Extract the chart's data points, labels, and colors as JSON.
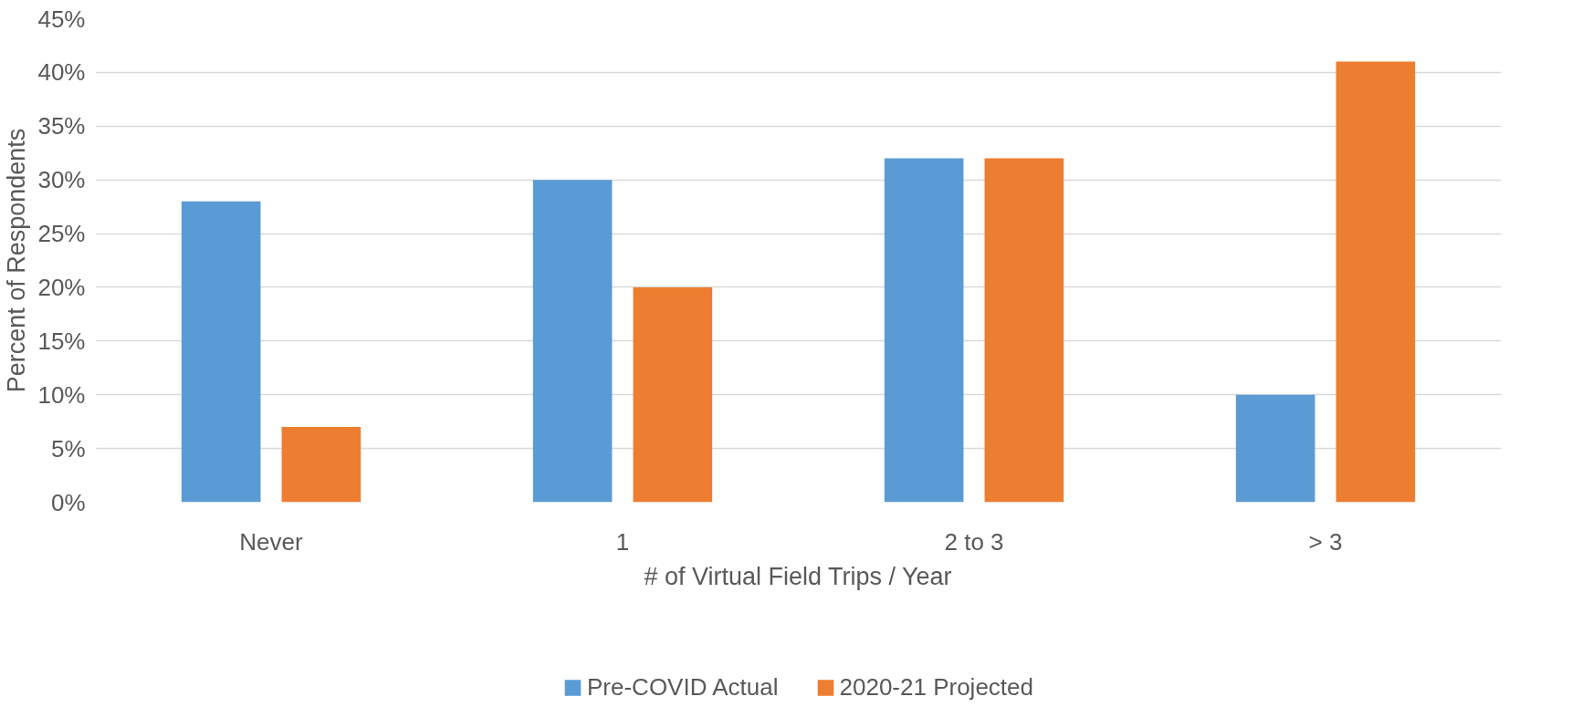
{
  "chart_data": {
    "type": "bar",
    "xlabel": "# of Virtual Field Trips / Year",
    "ylabel": "Percent of Respondents",
    "categories": [
      "Never",
      "1",
      "2 to 3",
      "> 3"
    ],
    "series": [
      {
        "name": "Pre-COVID Actual",
        "color": "#5b9bd5",
        "values": [
          28,
          30,
          32,
          10
        ]
      },
      {
        "name": "2020-21 Projected",
        "color": "#ed7d31",
        "values": [
          7,
          20,
          32,
          41
        ]
      }
    ],
    "ylim": [
      0,
      45
    ],
    "yticks": [
      {
        "value": 0,
        "label": "0%"
      },
      {
        "value": 5,
        "label": "5%"
      },
      {
        "value": 10,
        "label": "10%"
      },
      {
        "value": 15,
        "label": "15%"
      },
      {
        "value": 20,
        "label": "20%"
      },
      {
        "value": 25,
        "label": "25%"
      },
      {
        "value": 30,
        "label": "30%"
      },
      {
        "value": 35,
        "label": "35%"
      },
      {
        "value": 40,
        "label": "40%"
      },
      {
        "value": 45,
        "label": "45%"
      }
    ],
    "grid": "y",
    "legend": "bottom"
  }
}
